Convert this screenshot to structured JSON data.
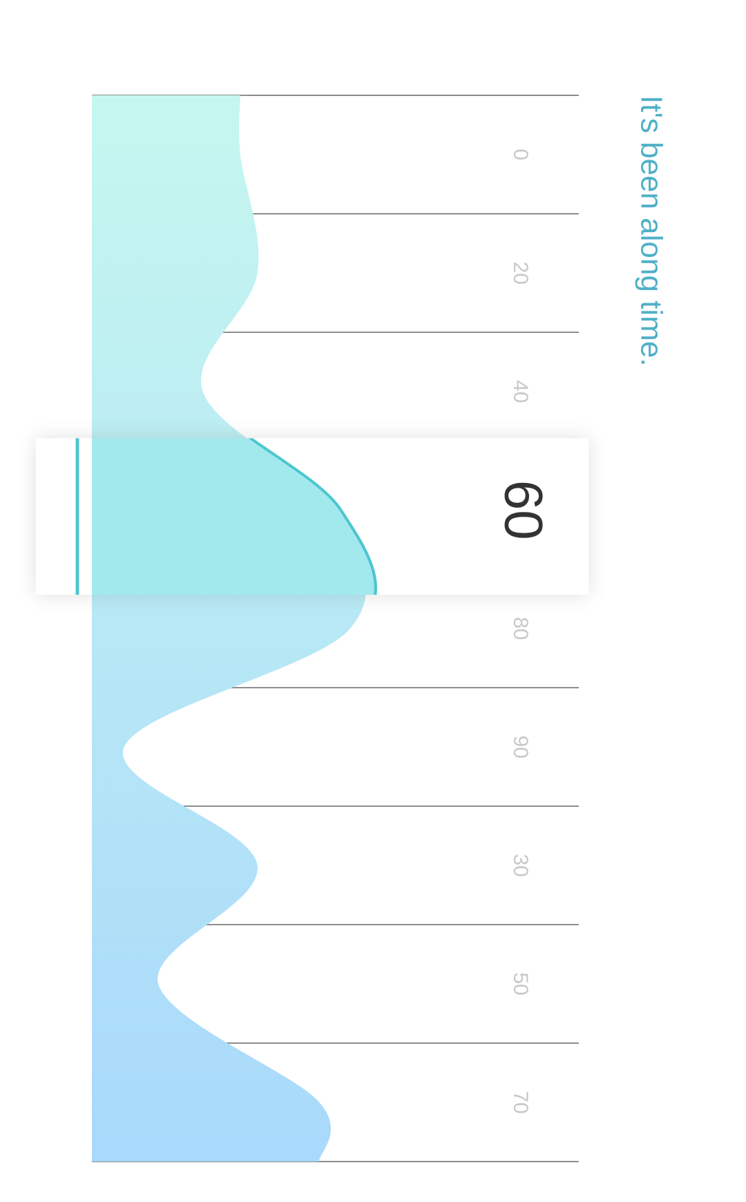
{
  "caption": "It's been along time.",
  "colors": {
    "accent_text": "#4fb0c6",
    "fill_top": "#c6f7ef",
    "fill_bottom": "#a9d9fb",
    "stroke_top": "#74e0d6",
    "stroke_bottom": "#8ccbe8",
    "highlight_fill": "#a2e9ee",
    "highlight_stroke": "#4dc6cf",
    "grid": "#666666"
  },
  "chart_data": {
    "type": "area",
    "orientation": "rotated",
    "categories": [
      "0",
      "20",
      "40",
      "60",
      "80",
      "90",
      "30",
      "50",
      "70"
    ],
    "values": [
      0.43,
      0.48,
      0.32,
      0.7,
      0.75,
      0.09,
      0.48,
      0.19,
      0.66
    ],
    "selected_index": 3,
    "selected_label": "60",
    "ylim": [
      0,
      1
    ],
    "grid": true,
    "legend": "none"
  }
}
